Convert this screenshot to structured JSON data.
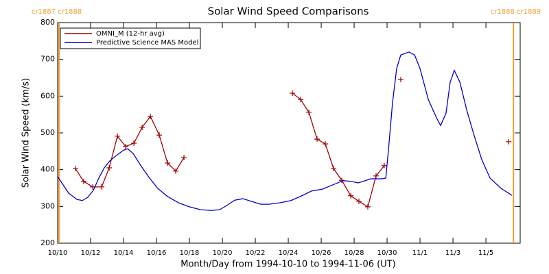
{
  "chart_data": {
    "type": "line",
    "title": "Solar Wind Speed Comparisons",
    "x_label": "Month/Day from 1994-10-10 to 1994-11-06 (UT)",
    "y_label": "Solar Wind Speed (km/s)",
    "xlim": [
      0,
      28.08
    ],
    "ylim": [
      200,
      800
    ],
    "xticks": [
      {
        "value": 0,
        "label": "10/10"
      },
      {
        "value": 2,
        "label": "10/12"
      },
      {
        "value": 4,
        "label": "10/14"
      },
      {
        "value": 6,
        "label": "10/16"
      },
      {
        "value": 8,
        "label": "10/18"
      },
      {
        "value": 10,
        "label": "10/20"
      },
      {
        "value": 12,
        "label": "10/22"
      },
      {
        "value": 14,
        "label": "10/24"
      },
      {
        "value": 16,
        "label": "10/26"
      },
      {
        "value": 18,
        "label": "10/28"
      },
      {
        "value": 20,
        "label": "10/30"
      },
      {
        "value": 22,
        "label": "11/1"
      },
      {
        "value": 24,
        "label": "11/3"
      },
      {
        "value": 26,
        "label": "11/5"
      }
    ],
    "yticks": [
      200,
      300,
      400,
      500,
      600,
      700,
      800
    ],
    "markers": [
      {
        "x": 0.08,
        "label": "cr1887 cr1888",
        "color": "#f0a030"
      },
      {
        "x": 27.67,
        "label": "cr1888 cr1889",
        "color": "#f0a030"
      }
    ],
    "legend": "upper left",
    "series": [
      {
        "name": "OMNI_M (12-hr avg)",
        "color": "#a00000",
        "marker": "+",
        "x": [
          1.08,
          1.58,
          2.13,
          2.67,
          3.13,
          3.63,
          4.13,
          4.63,
          5.13,
          5.63,
          6.17,
          6.67,
          7.17,
          7.67,
          null,
          14.25,
          14.75,
          15.25,
          15.75,
          16.25,
          16.75,
          17.25,
          17.79,
          18.29,
          18.83,
          19.33,
          19.83,
          null,
          20.83,
          null,
          27.38
        ],
        "values": [
          403,
          368,
          353,
          353,
          405,
          491,
          463,
          472,
          515,
          545,
          494,
          418,
          396,
          433,
          null,
          608,
          591,
          556,
          483,
          470,
          403,
          371,
          329,
          314,
          299,
          383,
          411,
          null,
          645,
          null,
          476
        ]
      },
      {
        "name": "Predictive Science MAS Model",
        "color": "#0000cc",
        "x": [
          0,
          0.67,
          1.17,
          1.5,
          1.83,
          2.17,
          2.5,
          2.83,
          3.17,
          3.58,
          4.0,
          4.25,
          4.58,
          5.08,
          5.58,
          6.08,
          6.67,
          7.33,
          8,
          8.67,
          9.33,
          9.83,
          10.25,
          10.75,
          11.25,
          11.75,
          12.33,
          12.83,
          13.5,
          14.17,
          14.83,
          15.42,
          16.08,
          16.67,
          17.33,
          17.83,
          18.25,
          18.67,
          19,
          19.67,
          19.92,
          20.08,
          20.33,
          20.58,
          20.83,
          21.33,
          21.67,
          22,
          22.5,
          23,
          23.25,
          23.58,
          23.83,
          24.08,
          24.42,
          24.83,
          25.25,
          25.75,
          26.25,
          26.92,
          27.58
        ],
        "values": [
          381,
          336,
          319,
          316,
          325,
          344,
          377,
          405,
          424,
          439,
          453,
          457,
          444,
          409,
          377,
          349,
          327,
          310,
          299,
          291,
          289,
          291,
          302,
          317,
          321,
          314,
          306,
          306,
          310,
          316,
          329,
          342,
          347,
          358,
          370,
          368,
          364,
          370,
          375,
          375,
          377,
          452,
          582,
          675,
          712,
          720,
          712,
          675,
          591,
          541,
          520,
          554,
          638,
          670,
          638,
          563,
          498,
          427,
          377,
          349,
          330
        ]
      }
    ]
  }
}
